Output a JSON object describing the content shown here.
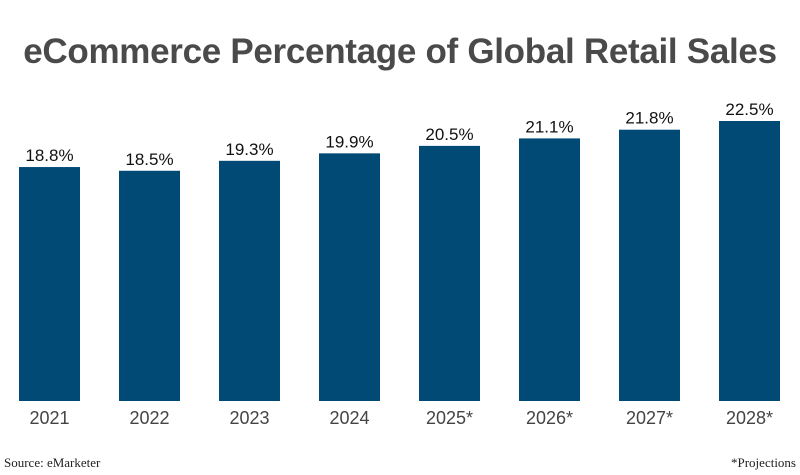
{
  "chart_data": {
    "type": "bar",
    "title": "eCommerce Percentage of Global Retail Sales",
    "categories": [
      "2021",
      "2022",
      "2023",
      "2024",
      "2025*",
      "2026*",
      "2027*",
      "2028*"
    ],
    "values": [
      18.8,
      18.5,
      19.3,
      19.9,
      20.5,
      21.1,
      21.8,
      22.5
    ],
    "data_labels": [
      "18.8%",
      "18.5%",
      "19.3%",
      "19.9%",
      "20.5%",
      "21.1%",
      "21.8%",
      "22.5%"
    ],
    "xlabel": "",
    "ylabel": "",
    "ylim": [
      0,
      22.5
    ],
    "grid": false,
    "bar_color": "#004a75",
    "source": "Source: eMarketer",
    "note": "*Projections"
  }
}
